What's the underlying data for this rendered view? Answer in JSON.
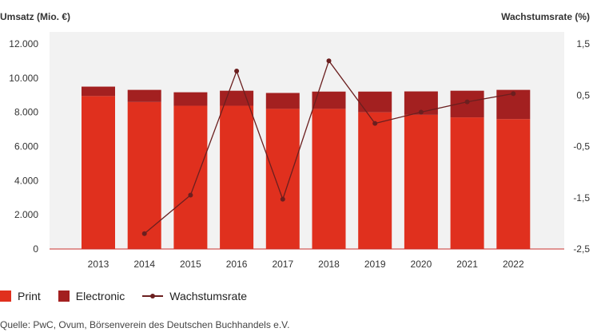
{
  "chart_data": {
    "type": "bar",
    "stacked": true,
    "left_axis_title": "Umsatz (Mio. €)",
    "right_axis_title": "Wachstumsrate (%)",
    "categories": [
      "2013",
      "2014",
      "2015",
      "2016",
      "2017",
      "2018",
      "2019",
      "2020",
      "2021",
      "2022"
    ],
    "series": [
      {
        "name": "Print",
        "type": "bar",
        "axis": "left",
        "color": "#e0301e",
        "values": [
          8950,
          8600,
          8380,
          8380,
          8200,
          8200,
          8000,
          7850,
          7700,
          7600
        ]
      },
      {
        "name": "Electronic",
        "type": "bar",
        "axis": "left",
        "color": "#a32020",
        "values": [
          550,
          710,
          790,
          880,
          930,
          1010,
          1210,
          1370,
          1560,
          1710
        ]
      },
      {
        "name": "Wachstumsrate",
        "type": "line",
        "axis": "right",
        "color": "#6b1f1f",
        "values": [
          null,
          -2.2,
          -1.45,
          0.97,
          -1.53,
          1.17,
          -0.05,
          0.17,
          0.37,
          0.53
        ]
      }
    ],
    "y_left": {
      "min": 0,
      "max": 12000,
      "ticks": [
        "0",
        "2.000",
        "4.000",
        "6.000",
        "8.000",
        "10.000",
        "12.000"
      ]
    },
    "y_right": {
      "min": -2.5,
      "max": 1.5,
      "ticks": [
        "-2,5",
        "-1,5",
        "-0,5",
        "0,5",
        "1,5"
      ]
    },
    "grid": false,
    "legend_position": "bottom-left"
  },
  "source": "Quelle: PwC, Ovum, Börsenverein des Deutschen Buchhandels e.V."
}
